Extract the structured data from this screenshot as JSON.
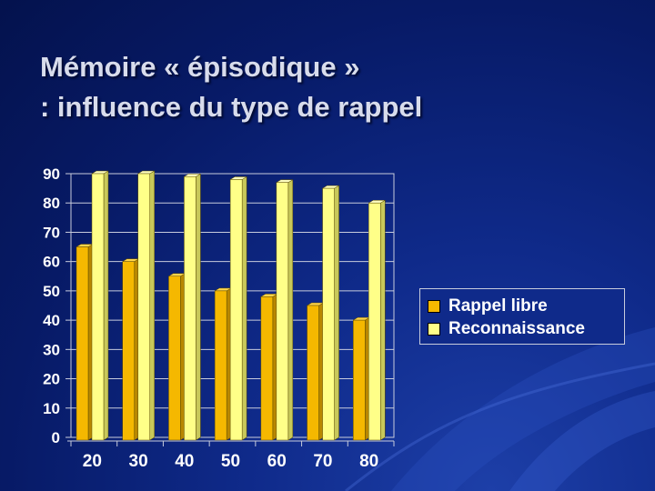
{
  "slide": {
    "title_line1": "Mémoire « épisodique »",
    "title_line2": ": influence du type de rappel"
  },
  "colors": {
    "series1_face": "#f5b800",
    "series1_side": "#b88700",
    "series1_top": "#ffd54a",
    "series2_face": "#ffff88",
    "series2_side": "#c8c85a",
    "series2_top": "#ffffc0",
    "text": "#ffffff",
    "grid": "#c8ccdc"
  },
  "chart_data": {
    "type": "bar",
    "categories": [
      "20",
      "30",
      "40",
      "50",
      "60",
      "70",
      "80"
    ],
    "series": [
      {
        "name": "Rappel libre",
        "values": [
          65,
          60,
          55,
          50,
          48,
          45,
          40
        ]
      },
      {
        "name": "Reconnaissance",
        "values": [
          90,
          90,
          89,
          88,
          87,
          85,
          80
        ]
      }
    ],
    "yticks": [
      "0",
      "10",
      "20",
      "30",
      "40",
      "50",
      "60",
      "70",
      "80",
      "90"
    ],
    "ylim": [
      0,
      90
    ],
    "grid": true,
    "legend": "right"
  }
}
